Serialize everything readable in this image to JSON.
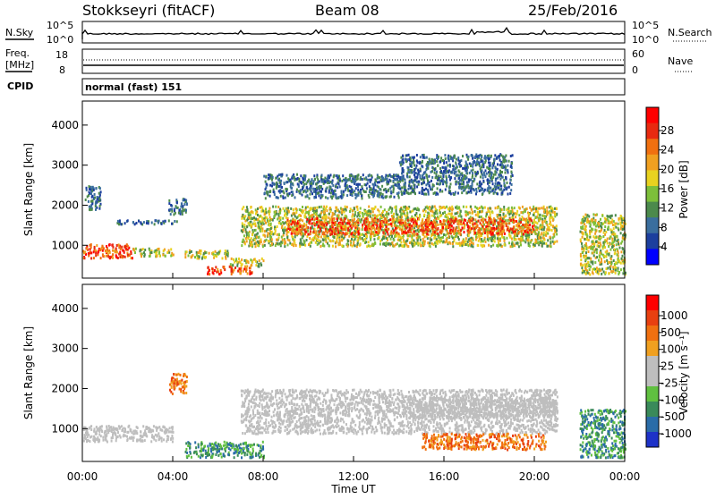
{
  "header": {
    "title": "Stokkseyri (fitACF)",
    "beam": "Beam 08",
    "date": "25/Feb/2016"
  },
  "noise_panel": {
    "left_label": "N.Sky",
    "left_ticks": [
      "10^5",
      "10^0"
    ],
    "right_ticks": [
      "10^5",
      "10^0"
    ],
    "right_label": "N.Search"
  },
  "freq_panel": {
    "left_label_line1": "Freq.",
    "left_label_line2": "[MHz]",
    "left_ticks": [
      "18",
      "8"
    ],
    "right_ticks": [
      "60",
      "0"
    ],
    "right_label": "Nave"
  },
  "cpid": {
    "label": "CPID",
    "value": "normal (fast) 151"
  },
  "x_axis": {
    "ticks": [
      "00:00",
      "04:00",
      "08:00",
      "12:00",
      "16:00",
      "20:00",
      "00:00"
    ],
    "label": "Time UT"
  },
  "power_panel": {
    "ylabel": "Slant Range [km]",
    "yticks": [
      "4000",
      "3000",
      "2000",
      "1000"
    ],
    "colorbar_label": "Power [dB]",
    "colorbar_ticks": [
      "28",
      "24",
      "20",
      "16",
      "12",
      "8",
      "4"
    ],
    "colors": [
      "#0000ff",
      "#1c3f9e",
      "#3a6e9e",
      "#4c8a4c",
      "#7dbf3a",
      "#e8d21f",
      "#f0a020",
      "#f07010",
      "#e82a10",
      "#ff0000"
    ]
  },
  "velocity_panel": {
    "ylabel": "Slant Range [km]",
    "yticks": [
      "4000",
      "3000",
      "2000",
      "1000"
    ],
    "colorbar_label": "Velocity [m s⁻¹]",
    "colorbar_ticks": [
      "1000",
      "500",
      "100",
      "25",
      "-25",
      "-100",
      "-500",
      "-1000"
    ],
    "colors": [
      "#1e32c8",
      "#2a6ca8",
      "#3a8a5a",
      "#60c040",
      "#bebebe",
      "#bebebe",
      "#f0a020",
      "#f07010",
      "#e84010",
      "#ff0000"
    ]
  },
  "chart_data": [
    {
      "type": "heatmap",
      "title": "Power",
      "x_range_hours": [
        0,
        24
      ],
      "y_range_km": [
        180,
        4600
      ],
      "scatter_regions": [
        {
          "t": [
            0.0,
            2.2
          ],
          "r": [
            700,
            1050
          ],
          "level": "high"
        },
        {
          "t": [
            2.2,
            4.0
          ],
          "r": [
            750,
            950
          ],
          "level": "medium"
        },
        {
          "t": [
            0.1,
            0.8
          ],
          "r": [
            1900,
            2500
          ],
          "level": "low"
        },
        {
          "t": [
            1.5,
            4.2
          ],
          "r": [
            1550,
            1650
          ],
          "level": "low"
        },
        {
          "t": [
            3.8,
            4.6
          ],
          "r": [
            1800,
            2200
          ],
          "level": "low"
        },
        {
          "t": [
            4.5,
            6.5
          ],
          "r": [
            700,
            900
          ],
          "level": "medium"
        },
        {
          "t": [
            5.5,
            7.5
          ],
          "r": [
            300,
            500
          ],
          "level": "high"
        },
        {
          "t": [
            6.5,
            8.0
          ],
          "r": [
            500,
            700
          ],
          "level": "medium"
        },
        {
          "t": [
            7.0,
            21.0
          ],
          "r": [
            1000,
            2000
          ],
          "level": "medium"
        },
        {
          "t": [
            9.0,
            20.0
          ],
          "r": [
            1300,
            1700
          ],
          "level": "high"
        },
        {
          "t": [
            8.0,
            14.0
          ],
          "r": [
            2200,
            2800
          ],
          "level": "low"
        },
        {
          "t": [
            14.0,
            19.0
          ],
          "r": [
            2300,
            3300
          ],
          "level": "low"
        },
        {
          "t": [
            22.0,
            24.0
          ],
          "r": [
            300,
            1800
          ],
          "level": "medium"
        }
      ]
    },
    {
      "type": "heatmap",
      "title": "Velocity",
      "x_range_hours": [
        0,
        24
      ],
      "y_range_km": [
        180,
        4600
      ],
      "scatter_regions": [
        {
          "t": [
            0.0,
            4.0
          ],
          "r": [
            700,
            1100
          ],
          "level": "ground"
        },
        {
          "t": [
            3.8,
            4.6
          ],
          "r": [
            1900,
            2400
          ],
          "level": "away"
        },
        {
          "t": [
            4.5,
            8.0
          ],
          "r": [
            300,
            700
          ],
          "level": "toward"
        },
        {
          "t": [
            7.0,
            21.0
          ],
          "r": [
            900,
            2000
          ],
          "level": "ground"
        },
        {
          "t": [
            14.0,
            21.0
          ],
          "r": [
            1300,
            1800
          ],
          "level": "ground"
        },
        {
          "t": [
            15.0,
            20.5
          ],
          "r": [
            500,
            900
          ],
          "level": "away"
        },
        {
          "t": [
            22.0,
            24.0
          ],
          "r": [
            300,
            1500
          ],
          "level": "toward"
        }
      ]
    }
  ]
}
